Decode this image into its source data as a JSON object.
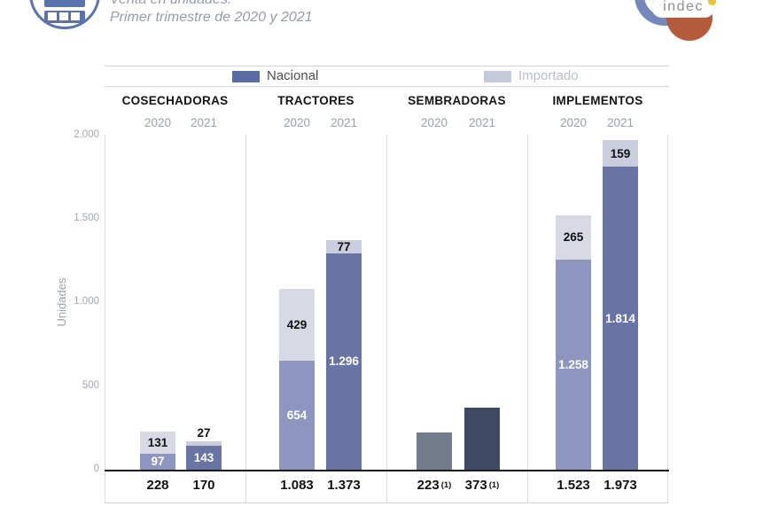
{
  "header": {
    "title_line1": "Venta en unidades.",
    "title_line2": "Primer trimestre de 2020 y 2021",
    "logo_text": "indec"
  },
  "legend": {
    "items": [
      {
        "label": "Nacional",
        "color": "#5b6ca4"
      },
      {
        "label": "Importado",
        "color": "#c6cbdc"
      }
    ]
  },
  "chart_data": {
    "type": "bar",
    "stacked": true,
    "title": "Venta en unidades. Primer trimestre de 2020 y 2021",
    "ylabel": "Unidades",
    "ylim": [
      0,
      2000
    ],
    "ytick_labels": [
      "2.000",
      "1.500",
      "1.000",
      "500",
      "0"
    ],
    "ytick_values": [
      2000,
      1500,
      1000,
      500,
      0
    ],
    "legend_position": "top",
    "series_names": [
      "Nacional",
      "Importado"
    ],
    "groups": [
      {
        "name": "COSECHADORAS",
        "bars": [
          {
            "year": "2020",
            "nacional": 97,
            "nacional_label": "97",
            "nacional_color": "#8d96bf",
            "importado": 131,
            "importado_label": "131",
            "importado_color": "#d7d9e4",
            "total_label": "228"
          },
          {
            "year": "2021",
            "nacional": 143,
            "nacional_label": "143",
            "nacional_color": "#6874a4",
            "importado": 27,
            "importado_label": "27",
            "importado_color": "#c9cdde",
            "total_label": "170"
          }
        ]
      },
      {
        "name": "TRACTORES",
        "bars": [
          {
            "year": "2020",
            "nacional": 654,
            "nacional_label": "654",
            "nacional_color": "#8d96bf",
            "importado": 429,
            "importado_label": "429",
            "importado_color": "#d7d9e4",
            "total_label": "1.083"
          },
          {
            "year": "2021",
            "nacional": 1296,
            "nacional_label": "1.296",
            "nacional_color": "#6874a4",
            "importado": 77,
            "importado_label": "77",
            "importado_color": "#c9cdde",
            "total_label": "1.373"
          }
        ]
      },
      {
        "name": "SEMBRADORAS",
        "bars": [
          {
            "year": "2020",
            "total": 223,
            "total_label": "223",
            "footnote": "(1)",
            "color": "#727c8c"
          },
          {
            "year": "2021",
            "total": 373,
            "total_label": "373",
            "footnote": "(1)",
            "color": "#3e4a63"
          }
        ]
      },
      {
        "name": "IMPLEMENTOS",
        "bars": [
          {
            "year": "2020",
            "nacional": 1258,
            "nacional_label": "1.258",
            "nacional_color": "#8d96bf",
            "importado": 265,
            "importado_label": "265",
            "importado_color": "#d7d9e4",
            "total_label": "1.523"
          },
          {
            "year": "2021",
            "nacional": 1814,
            "nacional_label": "1.814",
            "nacional_color": "#6874a4",
            "importado": 159,
            "importado_label": "159",
            "importado_color": "#c9cdde",
            "total_label": "1.973"
          }
        ]
      }
    ]
  }
}
